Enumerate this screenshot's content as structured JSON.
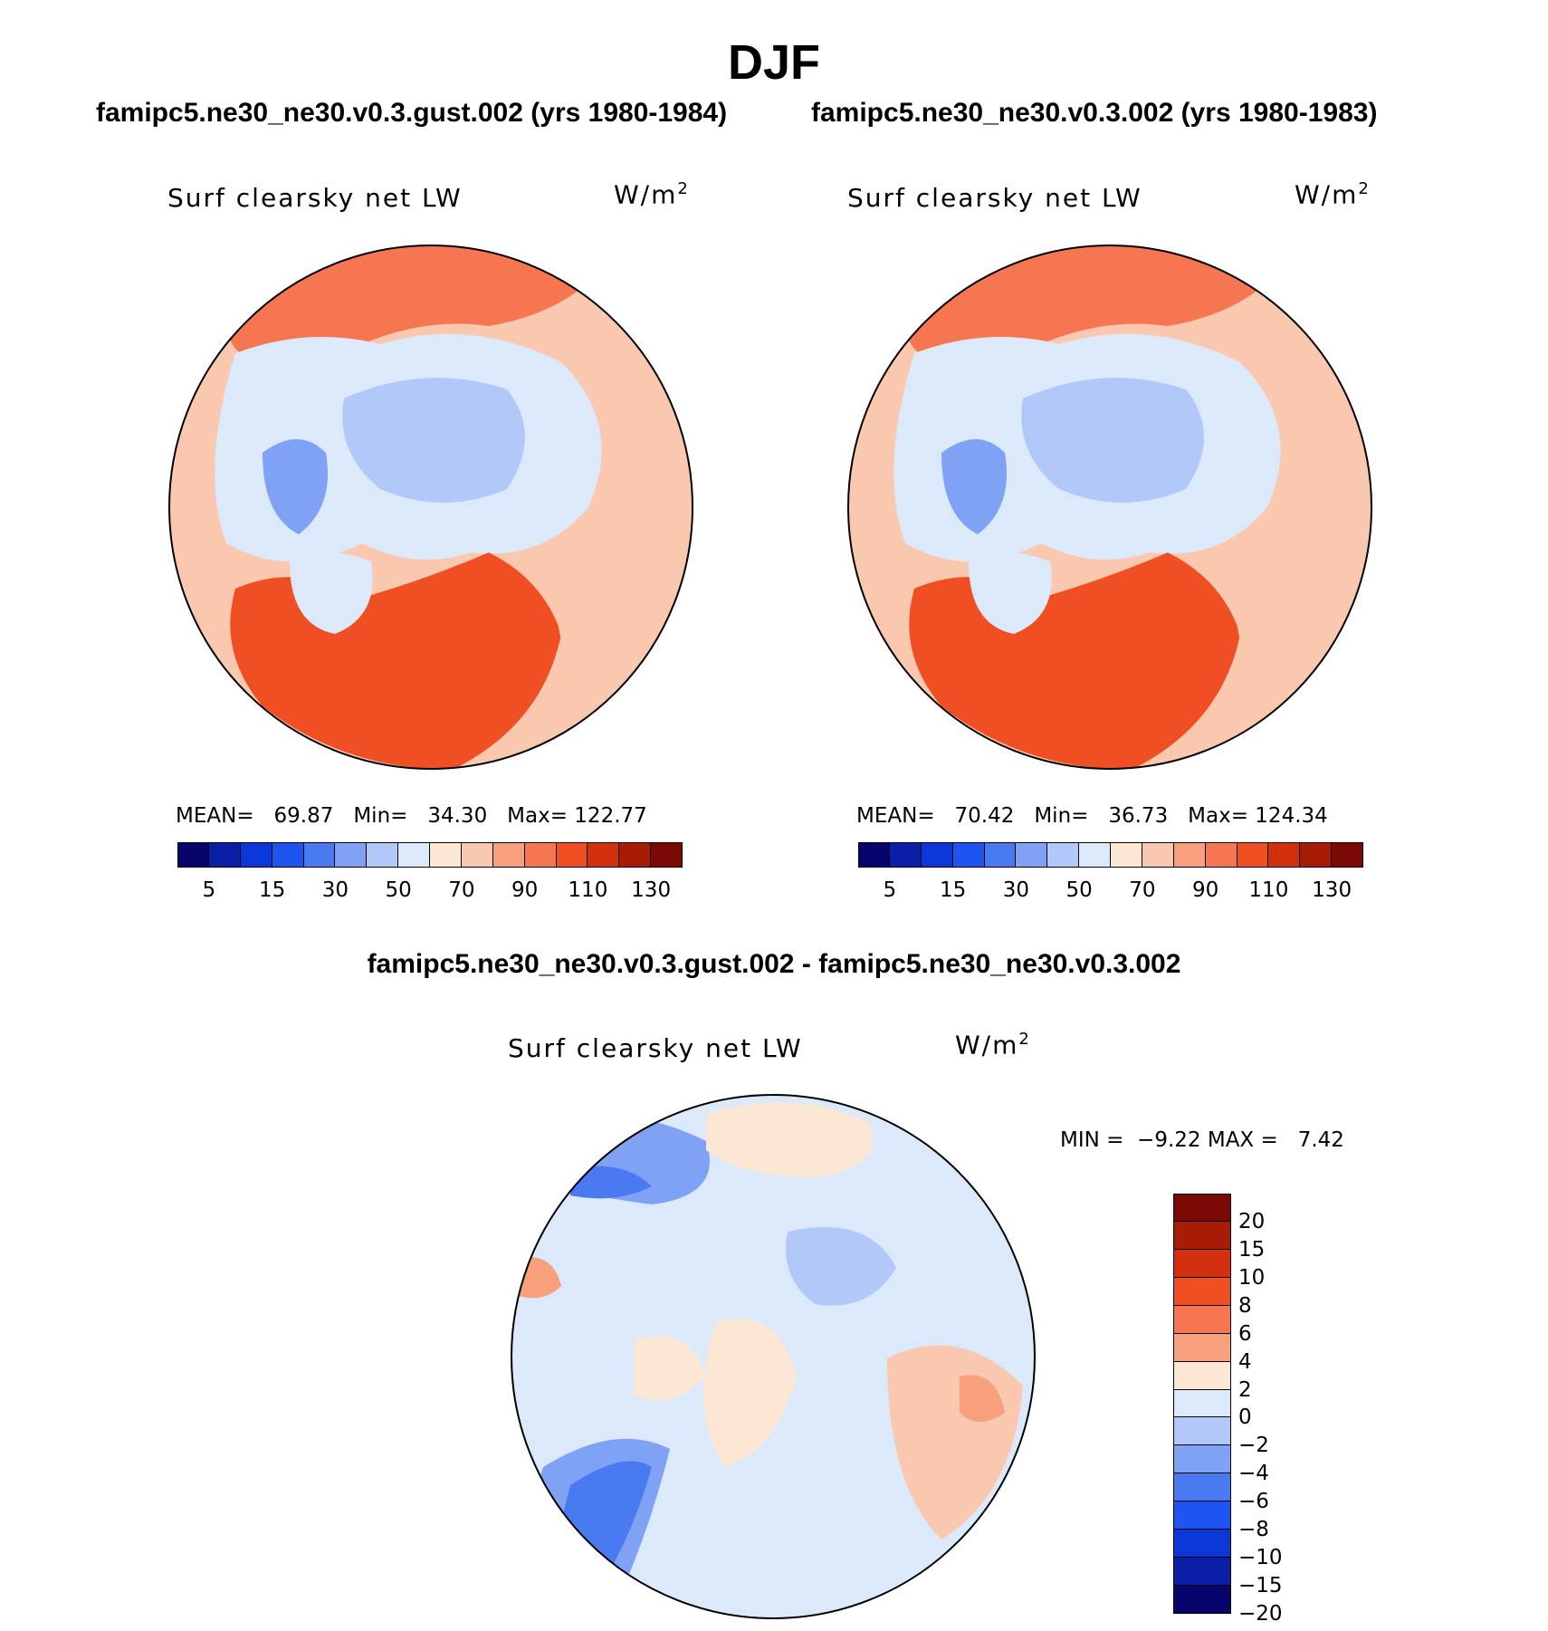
{
  "season": "DJF",
  "panel_left": {
    "case": "famipc5.ne30_ne30.v0.3.gust.002 (yrs 1980-1984)",
    "variable": "Surf clearsky net LW",
    "units": "W/m",
    "units_exp": "2",
    "mean_label": "MEAN=",
    "mean": "69.87",
    "min_label": "Min=",
    "min": "34.30",
    "max_label": "Max=",
    "max": "122.77"
  },
  "panel_right": {
    "case": "famipc5.ne30_ne30.v0.3.002 (yrs 1980-1983)",
    "variable": "Surf clearsky net LW",
    "units": "W/m",
    "units_exp": "2",
    "mean_label": "MEAN=",
    "mean": "70.42",
    "min_label": "Min=",
    "min": "36.73",
    "max_label": "Max=",
    "max": "124.34"
  },
  "panel_diff": {
    "title": "famipc5.ne30_ne30.v0.3.gust.002 - famipc5.ne30_ne30.v0.3.002",
    "variable": "Surf clearsky net LW",
    "units": "W/m",
    "units_exp": "2",
    "min_label": "MIN =",
    "min": "−9.22",
    "max_label": "MAX =",
    "max": "7.42"
  },
  "abs_colorbar": {
    "colors": [
      "#08046e",
      "#0a1ea8",
      "#0b36d8",
      "#1e55f0",
      "#4a7af2",
      "#7fa2f5",
      "#b1c8f8",
      "#dbe9fb",
      "#fce6d4",
      "#fac8ae",
      "#f7a07b",
      "#f57650",
      "#f04e23",
      "#d2300e",
      "#a81c06",
      "#7a0803"
    ],
    "tick_labels": [
      "5",
      "15",
      "30",
      "50",
      "70",
      "90",
      "110",
      "130"
    ]
  },
  "diff_colorbar": {
    "colors": [
      "#7a0803",
      "#a81c06",
      "#d2300e",
      "#f04e23",
      "#f57650",
      "#f7a07b",
      "#fce6d4",
      "#dbe9fb",
      "#b1c8f8",
      "#7fa2f5",
      "#4a7af2",
      "#1e55f0",
      "#0b36d8",
      "#0a1ea8",
      "#08046e"
    ],
    "tick_labels": [
      "20",
      "15",
      "10",
      "8",
      "6",
      "4",
      "2",
      "0",
      "−2",
      "−4",
      "−6",
      "−8",
      "−10",
      "−15",
      "−20"
    ]
  }
}
